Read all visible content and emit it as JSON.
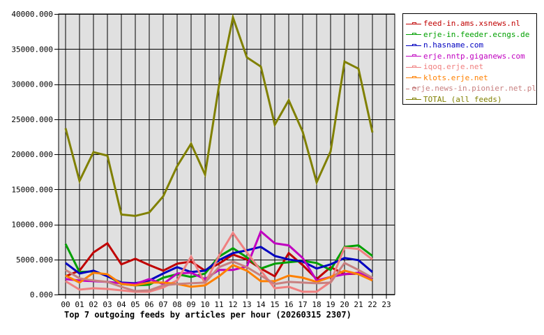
{
  "chart_data": {
    "type": "line",
    "title": "Top 7 outgoing feeds by articles per hour (20260315 2307)",
    "xlabel": "",
    "ylabel": "",
    "ylim": [
      0,
      40000
    ],
    "grid": true,
    "legend_position": "right",
    "yticks": [
      "0.000",
      "5000.000",
      "10000.000",
      "15000.000",
      "20000.000",
      "25000.000",
      "30000.000",
      "35000.000",
      "40000.000"
    ],
    "categories": [
      "00",
      "01",
      "02",
      "03",
      "04",
      "05",
      "06",
      "07",
      "08",
      "09",
      "10",
      "11",
      "12",
      "13",
      "14",
      "15",
      "16",
      "17",
      "18",
      "19",
      "20",
      "21",
      "22",
      "23"
    ],
    "series": [
      {
        "name": "feed-in.ams.xsnews.nl",
        "color": "#c00000",
        "values": [
          2600,
          3400,
          6000,
          7300,
          4300,
          5100,
          4200,
          3400,
          4400,
          4700,
          3400,
          4400,
          5700,
          5000,
          3700,
          2600,
          5900,
          4200,
          2200,
          3900,
          2900,
          3000,
          2300
        ]
      },
      {
        "name": "erje-in.feeder.ecngs.de",
        "color": "#00a000",
        "values": [
          7200,
          3200,
          3300,
          2700,
          1500,
          1300,
          1400,
          2400,
          2900,
          2500,
          3000,
          5400,
          6600,
          5300,
          3700,
          4400,
          4600,
          4800,
          4500,
          3500,
          6800,
          7000,
          5500
        ]
      },
      {
        "name": "n.hasname.com",
        "color": "#0000c0",
        "values": [
          4500,
          3000,
          3400,
          2600,
          1700,
          1600,
          2000,
          3000,
          3900,
          3200,
          3400,
          4900,
          5900,
          6300,
          6800,
          5500,
          5000,
          4700,
          3700,
          4300,
          5200,
          4900,
          3200
        ]
      },
      {
        "name": "erje.nntp.giganews.com",
        "color": "#c000c0",
        "values": [
          2200,
          2000,
          1900,
          1800,
          1600,
          1500,
          2200,
          1500,
          3000,
          3100,
          2200,
          3500,
          3500,
          4000,
          9000,
          7300,
          7000,
          5200,
          2000,
          2500,
          2900,
          3100,
          2300
        ]
      },
      {
        "name": "iqoq.erje.net",
        "color": "#f08080",
        "values": [
          1900,
          700,
          900,
          800,
          600,
          400,
          400,
          1000,
          2000,
          5400,
          1600,
          5500,
          8800,
          6000,
          3400,
          900,
          1100,
          400,
          400,
          1800,
          6700,
          6500,
          5000
        ]
      },
      {
        "name": "klots.erje.net",
        "color": "#ff8000",
        "values": [
          2700,
          1700,
          3100,
          2900,
          1500,
          1300,
          1700,
          1700,
          1500,
          1100,
          1300,
          2600,
          4200,
          3400,
          1900,
          1900,
          2700,
          2400,
          1800,
          2500,
          3400,
          2900,
          2000
        ]
      },
      {
        "name": "erje.news-in.pionier.net.pl",
        "color": "#c88080",
        "values": [
          3500,
          2300,
          2000,
          1800,
          1100,
          500,
          600,
          1300,
          1500,
          1600,
          1700,
          3900,
          4700,
          3900,
          2700,
          1500,
          1800,
          1700,
          1600,
          1700,
          4500,
          3500,
          2400
        ]
      },
      {
        "name": "TOTAL (all feeds)",
        "color": "#808000",
        "values": [
          23700,
          16200,
          20300,
          19800,
          11400,
          11200,
          11700,
          14000,
          18300,
          21500,
          17100,
          29800,
          39500,
          33800,
          32500,
          24200,
          27700,
          23200,
          16000,
          20400,
          33200,
          32200,
          23100
        ]
      }
    ]
  },
  "legend": {
    "items": [
      {
        "label": "feed-in.ams.xsnews.nl",
        "color": "#c00000"
      },
      {
        "label": "erje-in.feeder.ecngs.de",
        "color": "#00a000"
      },
      {
        "label": "n.hasname.com",
        "color": "#0000c0"
      },
      {
        "label": "erje.nntp.giganews.com",
        "color": "#c000c0"
      },
      {
        "label": "iqoq.erje.net",
        "color": "#f08080"
      },
      {
        "label": "klots.erje.net",
        "color": "#ff8000"
      },
      {
        "label": "erje.news-in.pionier.net.pl",
        "color": "#c88080"
      },
      {
        "label": "TOTAL (all feeds)",
        "color": "#808000"
      }
    ]
  },
  "plot": {
    "background": "#e0e0e0",
    "grid_color": "#000000"
  }
}
